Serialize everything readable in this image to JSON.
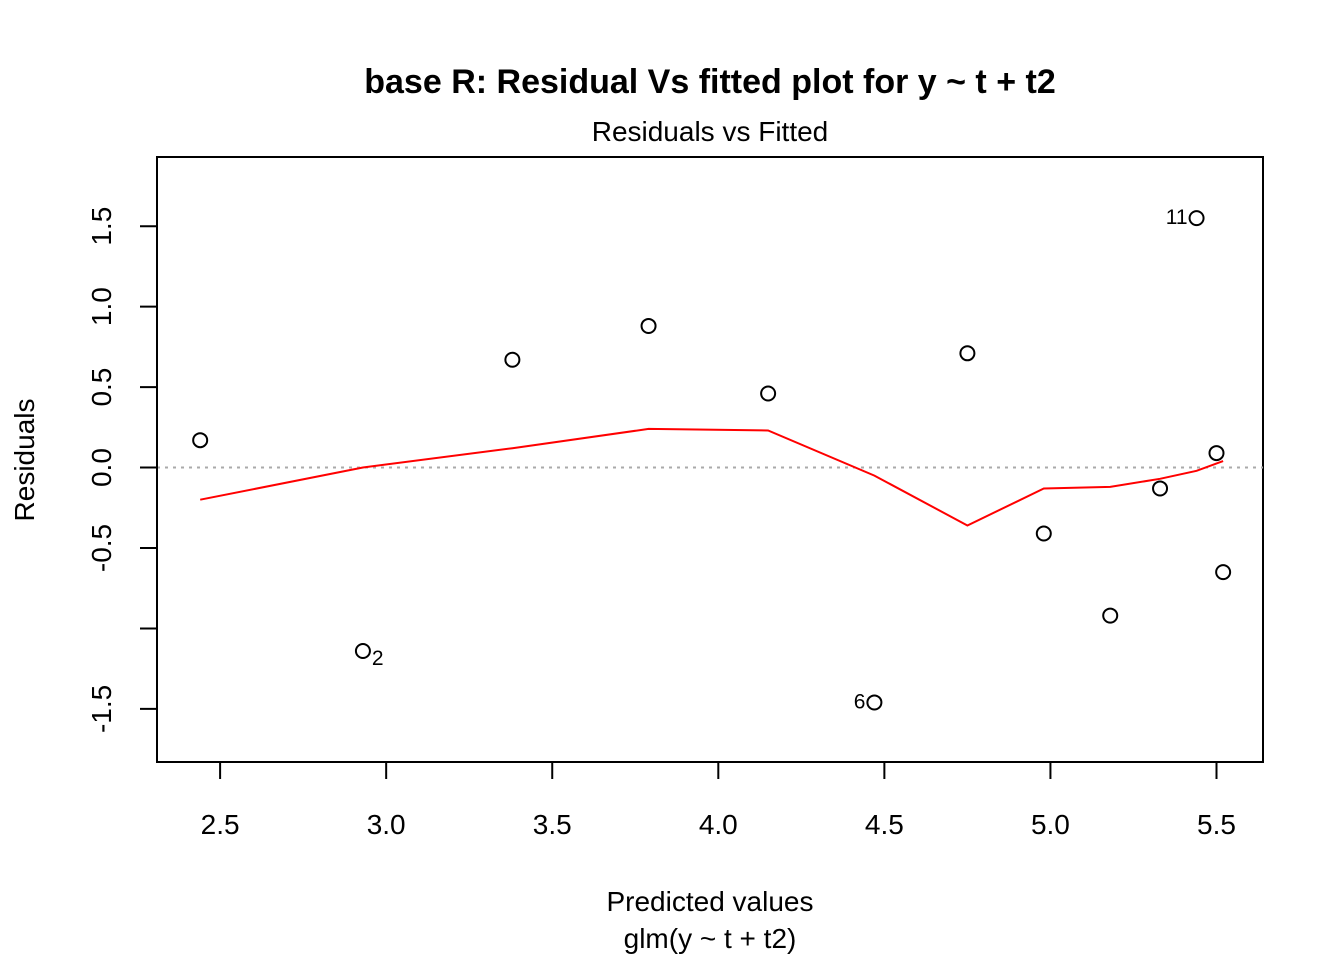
{
  "chart_data": {
    "type": "scatter",
    "title": "base R: Residual Vs fitted plot for y ~ t + t2",
    "subtitle": "Residuals vs Fitted",
    "xlabel": "Predicted values",
    "xlabel2": "glm(y ~ t + t2)",
    "ylabel": "Residuals",
    "xlim": [
      2.31,
      5.64
    ],
    "ylim": [
      -1.83,
      1.93
    ],
    "x_ticks": [
      "2.5",
      "3.0",
      "3.5",
      "4.0",
      "4.5",
      "5.0",
      "5.5"
    ],
    "y_ticks": [
      "-1.5",
      "-1.0",
      "-0.5",
      "0.0",
      "0.5",
      "1.0",
      "1.5"
    ],
    "y_tick_labels_shown": [
      "-1.5",
      "",
      "-0.5",
      "0.0",
      "0.5",
      "1.0",
      "1.5"
    ],
    "points": [
      {
        "x": 2.44,
        "y": 0.17,
        "label": ""
      },
      {
        "x": 2.93,
        "y": -1.14,
        "label": "2"
      },
      {
        "x": 3.38,
        "y": 0.67,
        "label": ""
      },
      {
        "x": 3.79,
        "y": 0.88,
        "label": ""
      },
      {
        "x": 4.15,
        "y": 0.46,
        "label": ""
      },
      {
        "x": 4.47,
        "y": -1.46,
        "label": "6"
      },
      {
        "x": 4.75,
        "y": 0.71,
        "label": ""
      },
      {
        "x": 4.98,
        "y": -0.41,
        "label": ""
      },
      {
        "x": 5.18,
        "y": -0.92,
        "label": ""
      },
      {
        "x": 5.33,
        "y": -0.13,
        "label": ""
      },
      {
        "x": 5.44,
        "y": 1.55,
        "label": "11"
      },
      {
        "x": 5.5,
        "y": 0.09,
        "label": ""
      },
      {
        "x": 5.52,
        "y": -0.65,
        "label": ""
      }
    ],
    "smooth_line": {
      "color": "#ff0000",
      "x": [
        2.44,
        2.93,
        3.38,
        3.79,
        4.15,
        4.47,
        4.75,
        4.98,
        5.18,
        5.33,
        5.44,
        5.52
      ],
      "y": [
        -0.2,
        0.0,
        0.12,
        0.24,
        0.23,
        -0.05,
        -0.36,
        -0.13,
        -0.12,
        -0.07,
        -0.02,
        0.04
      ]
    },
    "reference_line": {
      "y": 0,
      "color": "#aaaaaa",
      "style": "dotted"
    },
    "point_label_side": {
      "2": "right",
      "6": "left",
      "11": "left"
    }
  }
}
